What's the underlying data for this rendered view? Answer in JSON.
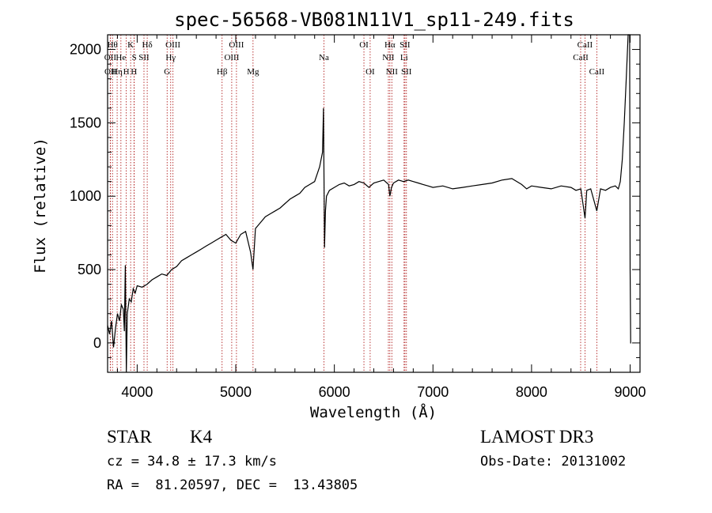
{
  "chart_data": {
    "type": "line",
    "title": "spec-56568-VB081N11V1_sp11-249.fits",
    "xlabel": "Wavelength (Å)",
    "ylabel": "Flux (relative)",
    "xlim": [
      3700,
      9100
    ],
    "ylim": [
      -200,
      2100
    ],
    "xticks": [
      4000,
      5000,
      6000,
      7000,
      8000,
      9000
    ],
    "yticks": [
      0,
      500,
      1000,
      1500,
      2000
    ],
    "grid": false,
    "line_color": "#000000",
    "marker_color": "#b22222",
    "series": [
      {
        "x": [
          3700,
          3720,
          3740,
          3760,
          3780,
          3800,
          3820,
          3840,
          3860,
          3870,
          3880,
          3890,
          3900,
          3920,
          3940,
          3960,
          3980,
          4000,
          4050,
          4100,
          4150,
          4200,
          4250,
          4300,
          4350,
          4400,
          4450,
          4500,
          4550,
          4600,
          4650,
          4700,
          4750,
          4800,
          4850,
          4900,
          4950,
          5000,
          5050,
          5100,
          5150,
          5175,
          5200,
          5250,
          5300,
          5350,
          5400,
          5450,
          5500,
          5550,
          5600,
          5650,
          5700,
          5750,
          5800,
          5850,
          5880,
          5890,
          5895,
          5900,
          5910,
          5920,
          5950,
          6000,
          6050,
          6100,
          6150,
          6200,
          6250,
          6300,
          6350,
          6400,
          6450,
          6500,
          6550,
          6563,
          6580,
          6600,
          6650,
          6700,
          6750,
          6800,
          6850,
          6900,
          6950,
          7000,
          7100,
          7200,
          7300,
          7400,
          7500,
          7600,
          7700,
          7800,
          7900,
          7950,
          8000,
          8100,
          8200,
          8300,
          8400,
          8450,
          8500,
          8542,
          8560,
          8600,
          8662,
          8700,
          8750,
          8800,
          8850,
          8880,
          8900,
          8920,
          8940,
          8960,
          8980,
          8995,
          9000,
          9005,
          9010
        ],
        "y": [
          120,
          60,
          150,
          -30,
          100,
          200,
          150,
          260,
          230,
          80,
          530,
          -200,
          200,
          300,
          280,
          370,
          340,
          390,
          380,
          400,
          430,
          450,
          470,
          460,
          500,
          520,
          560,
          580,
          600,
          620,
          640,
          660,
          680,
          700,
          720,
          740,
          700,
          680,
          740,
          760,
          620,
          500,
          780,
          820,
          860,
          880,
          900,
          920,
          950,
          980,
          1000,
          1020,
          1060,
          1080,
          1100,
          1200,
          1300,
          1600,
          1100,
          650,
          900,
          1000,
          1040,
          1060,
          1080,
          1090,
          1070,
          1080,
          1100,
          1090,
          1060,
          1090,
          1100,
          1110,
          1080,
          1000,
          1060,
          1090,
          1110,
          1100,
          1110,
          1100,
          1090,
          1080,
          1070,
          1060,
          1070,
          1050,
          1060,
          1070,
          1080,
          1090,
          1110,
          1120,
          1080,
          1050,
          1070,
          1060,
          1050,
          1070,
          1060,
          1040,
          1050,
          850,
          1040,
          1050,
          900,
          1050,
          1040,
          1060,
          1070,
          1050,
          1100,
          1250,
          1500,
          1800,
          2100,
          2150,
          500,
          0,
          0
        ]
      }
    ],
    "line_markers": [
      {
        "x": 3750,
        "label": "Hθ",
        "row": 1
      },
      {
        "x": 3727,
        "label": "OII",
        "row": 2
      },
      {
        "x": 3729,
        "label": "OII",
        "row": 3
      },
      {
        "x": 3797,
        "label": "Hη",
        "row": 3
      },
      {
        "x": 3835,
        "label": "He",
        "row": 2
      },
      {
        "x": 3889,
        "label": "H",
        "row": 3
      },
      {
        "x": 3934,
        "label": "K",
        "row": 1
      },
      {
        "x": 3968,
        "label": "H",
        "row": 3
      },
      {
        "x": 3970,
        "label": "S",
        "row": 2
      },
      {
        "x": 4069,
        "label": "SII",
        "row": 2
      },
      {
        "x": 4102,
        "label": "Hδ",
        "row": 1
      },
      {
        "x": 4304,
        "label": "G",
        "row": 3
      },
      {
        "x": 4340,
        "label": "Hγ",
        "row": 2
      },
      {
        "x": 4363,
        "label": "OIII",
        "row": 1
      },
      {
        "x": 4861,
        "label": "Hβ",
        "row": 3
      },
      {
        "x": 4959,
        "label": "OIII",
        "row": 2
      },
      {
        "x": 5007,
        "label": "OIII",
        "row": 1
      },
      {
        "x": 5175,
        "label": "Mg",
        "row": 3
      },
      {
        "x": 5894,
        "label": "Na",
        "row": 2
      },
      {
        "x": 6300,
        "label": "OI",
        "row": 1
      },
      {
        "x": 6363,
        "label": "OI",
        "row": 3
      },
      {
        "x": 6548,
        "label": "NII",
        "row": 2
      },
      {
        "x": 6563,
        "label": "Hα",
        "row": 1
      },
      {
        "x": 6583,
        "label": "NII",
        "row": 3
      },
      {
        "x": 6707,
        "label": "Li",
        "row": 2
      },
      {
        "x": 6716,
        "label": "SII",
        "row": 1
      },
      {
        "x": 6731,
        "label": "SII",
        "row": 3
      },
      {
        "x": 8498,
        "label": "CaII",
        "row": 2
      },
      {
        "x": 8542,
        "label": "CaII",
        "row": 1
      },
      {
        "x": 8662,
        "label": "CaII",
        "row": 3
      }
    ]
  },
  "info": {
    "object_class": "STAR",
    "subclass": "K4",
    "redshift": "cz = 34.8 ± 17.3 km/s",
    "coords": "RA =  81.20597, DEC =  13.43805",
    "survey": "LAMOST DR3",
    "obs_date": "Obs-Date: 20131002"
  }
}
